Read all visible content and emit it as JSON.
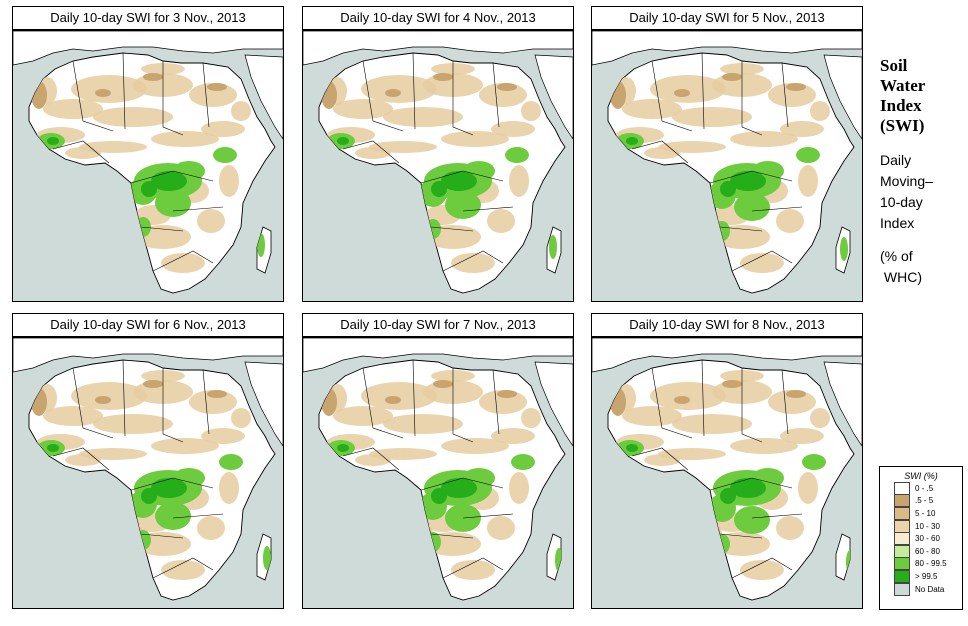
{
  "maps": [
    {
      "title": "Daily 10-day SWI for  3 Nov., 2013"
    },
    {
      "title": "Daily 10-day SWI for  4 Nov., 2013"
    },
    {
      "title": "Daily 10-day SWI for  5 Nov., 2013"
    },
    {
      "title": "Daily 10-day SWI for  6 Nov., 2013"
    },
    {
      "title": "Daily 10-day SWI for  7 Nov., 2013"
    },
    {
      "title": "Daily 10-day SWI for  8 Nov., 2013"
    }
  ],
  "sidebar": {
    "title_lines": [
      "Soil",
      "Water",
      "Index",
      "(SWI)"
    ],
    "desc_lines": [
      "Daily",
      "Moving–",
      "10-day",
      "Index"
    ],
    "unit_lines": [
      "(% of",
      " WHC)"
    ]
  },
  "legend": {
    "title": "SWI (%)",
    "items": [
      {
        "label": "0 - .5",
        "color": "#ffffff"
      },
      {
        "label": ".5 - 5",
        "color": "#c8a46e"
      },
      {
        "label": "5 - 10",
        "color": "#dcba88"
      },
      {
        "label": "10 - 30",
        "color": "#ecd4a8"
      },
      {
        "label": "30 - 60",
        "color": "#f7eccf"
      },
      {
        "label": "60 - 80",
        "color": "#c4ec9a"
      },
      {
        "label": "80 - 99.5",
        "color": "#6ccc3e"
      },
      {
        "label": "> 99.5",
        "color": "#26ad1a"
      },
      {
        "label": "No Data",
        "color": "#cdd9d6"
      }
    ]
  },
  "colors": {
    "ocean": "#cfdbd8",
    "land": "#ffffff",
    "dry": "#e6cda0",
    "dry_dark": "#c8a46e",
    "wet": "#6ccc3e",
    "wet_dark": "#26ad1a"
  }
}
